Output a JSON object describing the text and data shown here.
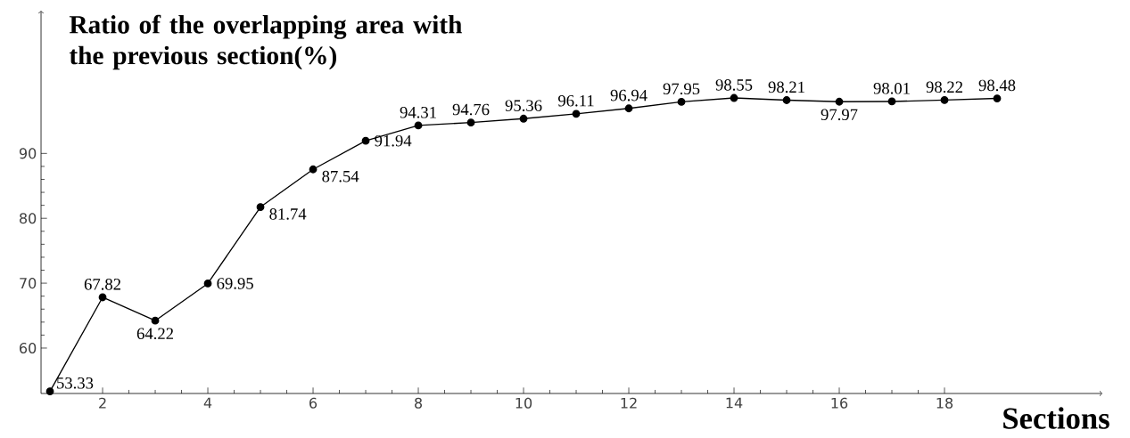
{
  "chart_data": {
    "type": "line",
    "ylabel": "Ratio of the overlapping area with the previous section(%)",
    "xlabel": "Sections",
    "x": [
      1,
      2,
      3,
      4,
      5,
      6,
      7,
      8,
      9,
      10,
      11,
      12,
      13,
      14,
      15,
      16,
      17,
      18,
      19
    ],
    "values": [
      53.33,
      67.82,
      64.22,
      69.95,
      81.74,
      87.54,
      91.94,
      94.31,
      94.76,
      95.36,
      96.11,
      96.94,
      97.95,
      98.55,
      98.21,
      97.97,
      98.01,
      98.22,
      98.48
    ],
    "color": "#000000",
    "marker": "circle",
    "line_style": "solid",
    "data_labels": true,
    "xlim": [
      0.83,
      21
    ],
    "ylim": [
      53,
      112
    ],
    "xticks": [
      2,
      4,
      6,
      8,
      10,
      12,
      14,
      16,
      18
    ],
    "yticks": [
      60,
      70,
      80,
      90
    ],
    "grid": false
  }
}
